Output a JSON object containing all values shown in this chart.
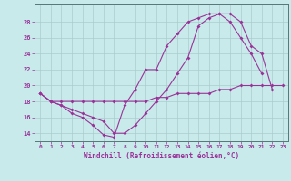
{
  "xlabel": "Windchill (Refroidissement éolien,°C)",
  "bg_color": "#c8eaea",
  "line_color": "#993399",
  "grid_color": "#aacccc",
  "x": [
    0,
    1,
    2,
    3,
    4,
    5,
    6,
    7,
    8,
    9,
    10,
    11,
    12,
    13,
    14,
    15,
    16,
    17,
    18,
    19,
    20,
    21,
    22,
    23
  ],
  "curve1": [
    19.0,
    18.0,
    17.5,
    16.5,
    16.0,
    15.0,
    13.8,
    13.5,
    17.5,
    19.5,
    22.0,
    22.0,
    25.0,
    26.5,
    28.0,
    28.5,
    29.0,
    29.0,
    28.0,
    26.0,
    24.0,
    21.5,
    null,
    null
  ],
  "curve2": [
    19.0,
    18.0,
    17.5,
    17.0,
    16.5,
    16.0,
    15.5,
    14.0,
    14.0,
    15.0,
    16.5,
    18.0,
    19.5,
    21.5,
    23.5,
    27.5,
    28.5,
    29.0,
    29.0,
    28.0,
    25.0,
    24.0,
    19.5,
    null
  ],
  "curve3": [
    19.0,
    18.0,
    18.0,
    18.0,
    18.0,
    18.0,
    18.0,
    18.0,
    18.0,
    18.0,
    18.0,
    18.5,
    18.5,
    19.0,
    19.0,
    19.0,
    19.0,
    19.5,
    19.5,
    20.0,
    20.0,
    20.0,
    20.0,
    20.0
  ],
  "ylim": [
    13,
    30
  ],
  "xlim": [
    -0.5,
    23.5
  ],
  "yticks": [
    14,
    16,
    18,
    20,
    22,
    24,
    26,
    28
  ],
  "xticks": [
    0,
    1,
    2,
    3,
    4,
    5,
    6,
    7,
    8,
    9,
    10,
    11,
    12,
    13,
    14,
    15,
    16,
    17,
    18,
    19,
    20,
    21,
    22,
    23
  ]
}
